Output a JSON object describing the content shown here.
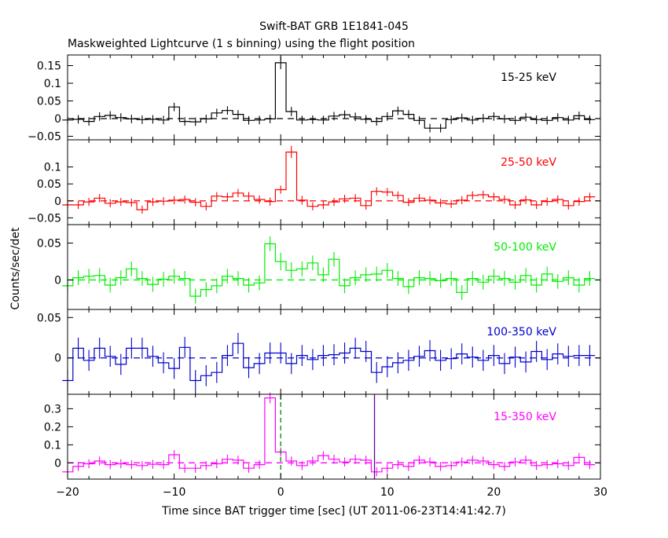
{
  "chart_data": {
    "type": "line",
    "title": "Swift-BAT GRB 1E1841-045",
    "subtitle": "Maskweighted Lightcurve (1 s binning) using the flight position",
    "xlabel": "Time since BAT trigger time [sec] (UT 2011-06-23T14:41:42.7)",
    "ylabel": "Counts/sec/det",
    "xlim": [
      -20,
      30
    ],
    "xticks": [
      -20,
      -10,
      0,
      10,
      20,
      30
    ],
    "x_tick_labels": [
      "−20",
      "−10",
      "0",
      "10",
      "20",
      "30"
    ],
    "x": [
      -20,
      -19,
      -18,
      -17,
      -16,
      -15,
      -14,
      -13,
      -12,
      -11,
      -10,
      -9,
      -8,
      -7,
      -6,
      -5,
      -4,
      -3,
      -2,
      -1,
      0,
      1,
      2,
      3,
      4,
      5,
      6,
      7,
      8,
      9,
      10,
      11,
      12,
      13,
      14,
      15,
      16,
      17,
      18,
      19,
      20,
      21,
      22,
      23,
      24,
      25,
      26,
      27,
      28,
      29
    ],
    "bin_width": 1,
    "grid": false,
    "zero_line": true,
    "series": [
      {
        "name": "15-25 keV",
        "color": "#000000",
        "ylim": [
          -0.06,
          0.18
        ],
        "yticks": [
          -0.05,
          0,
          0.05,
          0.1,
          0.15
        ],
        "y_tick_labels": [
          "−0.05",
          "0",
          "0.05",
          "0.1",
          "0.15"
        ],
        "values": [
          -0.004,
          -0.002,
          -0.008,
          0.006,
          0.009,
          0.003,
          -0.001,
          -0.003,
          -0.002,
          -0.004,
          0.033,
          -0.008,
          -0.009,
          -0.001,
          0.016,
          0.023,
          0.012,
          -0.005,
          -0.004,
          -0.001,
          0.158,
          0.02,
          -0.004,
          -0.003,
          -0.004,
          0.007,
          0.011,
          0.005,
          -0.002,
          -0.008,
          0.006,
          0.022,
          0.012,
          -0.005,
          -0.027,
          -0.027,
          -0.003,
          0.002,
          -0.004,
          0.001,
          0.006,
          -0.001,
          -0.005,
          0.004,
          -0.003,
          -0.005,
          0.003,
          -0.004,
          0.008,
          -0.003
        ],
        "errors": [
          0.012,
          0.012,
          0.012,
          0.012,
          0.012,
          0.012,
          0.012,
          0.012,
          0.012,
          0.012,
          0.012,
          0.012,
          0.012,
          0.012,
          0.012,
          0.012,
          0.012,
          0.012,
          0.012,
          0.012,
          0.018,
          0.013,
          0.012,
          0.012,
          0.012,
          0.012,
          0.012,
          0.012,
          0.012,
          0.012,
          0.012,
          0.012,
          0.012,
          0.012,
          0.012,
          0.012,
          0.012,
          0.012,
          0.012,
          0.012,
          0.012,
          0.012,
          0.012,
          0.012,
          0.012,
          0.012,
          0.012,
          0.012,
          0.012,
          0.012
        ]
      },
      {
        "name": "25-50 keV",
        "color": "#ff0000",
        "ylim": [
          -0.07,
          0.18
        ],
        "yticks": [
          -0.05,
          0,
          0.05,
          0.1
        ],
        "y_tick_labels": [
          "−0.05",
          "0",
          "0.05",
          "0.1"
        ],
        "values": [
          -0.012,
          -0.012,
          -0.003,
          0.008,
          -0.007,
          -0.003,
          -0.005,
          -0.026,
          -0.003,
          -0.001,
          0.002,
          0.004,
          -0.004,
          -0.016,
          0.014,
          0.012,
          0.023,
          0.014,
          0.004,
          -0.002,
          0.033,
          0.144,
          0.002,
          -0.016,
          -0.012,
          -0.003,
          0.006,
          0.008,
          -0.014,
          0.028,
          0.026,
          0.016,
          -0.004,
          0.008,
          0.002,
          -0.006,
          -0.009,
          0.002,
          0.016,
          0.018,
          0.012,
          0.004,
          -0.012,
          0.003,
          -0.012,
          -0.002,
          0.004,
          -0.014,
          -0.002,
          0.012
        ],
        "errors": [
          0.012,
          0.012,
          0.012,
          0.012,
          0.012,
          0.012,
          0.012,
          0.012,
          0.012,
          0.012,
          0.012,
          0.012,
          0.012,
          0.012,
          0.012,
          0.012,
          0.012,
          0.012,
          0.012,
          0.012,
          0.012,
          0.018,
          0.013,
          0.012,
          0.012,
          0.012,
          0.012,
          0.012,
          0.012,
          0.012,
          0.012,
          0.012,
          0.012,
          0.012,
          0.012,
          0.012,
          0.012,
          0.012,
          0.012,
          0.012,
          0.012,
          0.012,
          0.012,
          0.012,
          0.012,
          0.012,
          0.012,
          0.012,
          0.012,
          0.012
        ]
      },
      {
        "name": "50-100 keV",
        "color": "#00ee00",
        "ylim": [
          -0.04,
          0.075
        ],
        "yticks": [
          0,
          0.05
        ],
        "y_tick_labels": [
          "0",
          "0.05"
        ],
        "values": [
          -0.008,
          0.003,
          0.005,
          0.006,
          -0.007,
          0.003,
          0.015,
          0.002,
          -0.006,
          0.001,
          0.005,
          0.002,
          -0.022,
          -0.013,
          -0.008,
          0.005,
          0.002,
          -0.007,
          -0.004,
          0.049,
          0.025,
          0.013,
          0.015,
          0.023,
          0.007,
          0.028,
          -0.008,
          0.003,
          0.007,
          0.008,
          0.013,
          0.002,
          -0.009,
          0.003,
          0.002,
          -0.001,
          0.002,
          -0.017,
          0.002,
          -0.003,
          0.005,
          0.002,
          -0.003,
          0.006,
          -0.007,
          0.008,
          -0.002,
          0.003,
          -0.007,
          0.002
        ],
        "errors": [
          0.01,
          0.01,
          0.01,
          0.01,
          0.01,
          0.01,
          0.01,
          0.01,
          0.01,
          0.01,
          0.01,
          0.01,
          0.01,
          0.01,
          0.01,
          0.01,
          0.01,
          0.01,
          0.01,
          0.01,
          0.012,
          0.011,
          0.01,
          0.01,
          0.01,
          0.01,
          0.01,
          0.01,
          0.01,
          0.01,
          0.01,
          0.01,
          0.01,
          0.01,
          0.01,
          0.01,
          0.01,
          0.01,
          0.01,
          0.01,
          0.01,
          0.01,
          0.01,
          0.01,
          0.01,
          0.01,
          0.01,
          0.01,
          0.01,
          0.01
        ]
      },
      {
        "name": "100-350 keV",
        "color": "#0000cc",
        "ylim": [
          -0.045,
          0.06
        ],
        "yticks": [
          0,
          0.05
        ],
        "y_tick_labels": [
          "0",
          "0.05"
        ],
        "values": [
          -0.028,
          0.012,
          -0.003,
          0.012,
          0.002,
          -0.008,
          0.012,
          0.012,
          0.002,
          -0.006,
          -0.013,
          0.013,
          -0.028,
          -0.022,
          -0.018,
          0.003,
          0.018,
          -0.012,
          -0.007,
          0.006,
          0.006,
          -0.007,
          0.003,
          -0.002,
          0.003,
          0.004,
          0.006,
          0.012,
          0.008,
          -0.018,
          -0.011,
          -0.006,
          -0.003,
          0.002,
          0.009,
          -0.003,
          -0.001,
          0.005,
          0.001,
          -0.003,
          0.003,
          -0.007,
          0.001,
          -0.005,
          0.008,
          -0.002,
          0.005,
          0.002,
          0.003,
          0.003
        ],
        "errors": [
          0.013,
          0.013,
          0.013,
          0.013,
          0.013,
          0.013,
          0.013,
          0.013,
          0.013,
          0.013,
          0.013,
          0.013,
          0.013,
          0.013,
          0.013,
          0.013,
          0.013,
          0.013,
          0.013,
          0.013,
          0.013,
          0.013,
          0.013,
          0.013,
          0.013,
          0.013,
          0.013,
          0.013,
          0.013,
          0.013,
          0.013,
          0.013,
          0.013,
          0.013,
          0.013,
          0.013,
          0.013,
          0.013,
          0.013,
          0.013,
          0.013,
          0.013,
          0.013,
          0.013,
          0.013,
          0.013,
          0.013,
          0.013,
          0.013,
          0.013
        ]
      },
      {
        "name": "15-350 keV",
        "color": "#ff00ff",
        "ylim": [
          -0.09,
          0.38
        ],
        "yticks": [
          0,
          0.1,
          0.2,
          0.3
        ],
        "y_tick_labels": [
          "0",
          "0.1",
          "0.2",
          "0.3"
        ],
        "values": [
          -0.05,
          -0.02,
          -0.005,
          0.01,
          -0.01,
          -0.005,
          -0.01,
          -0.015,
          -0.008,
          -0.01,
          0.045,
          -0.03,
          -0.03,
          -0.015,
          -0.005,
          0.02,
          0.015,
          -0.03,
          -0.01,
          0.36,
          0.06,
          0.01,
          -0.015,
          0.01,
          0.04,
          0.02,
          0.005,
          0.02,
          0.015,
          -0.05,
          -0.03,
          -0.01,
          -0.02,
          0.015,
          0.005,
          -0.02,
          -0.015,
          0.005,
          0.015,
          0.01,
          -0.01,
          -0.02,
          0.005,
          0.015,
          -0.015,
          -0.01,
          -0.005,
          -0.015,
          0.03,
          -0.01
        ],
        "errors": [
          0.025,
          0.025,
          0.025,
          0.025,
          0.025,
          0.025,
          0.025,
          0.025,
          0.025,
          0.025,
          0.025,
          0.025,
          0.025,
          0.025,
          0.025,
          0.025,
          0.025,
          0.025,
          0.025,
          0.03,
          0.025,
          0.025,
          0.025,
          0.025,
          0.025,
          0.025,
          0.025,
          0.025,
          0.025,
          0.025,
          0.025,
          0.025,
          0.025,
          0.025,
          0.025,
          0.025,
          0.025,
          0.025,
          0.025,
          0.025,
          0.025,
          0.025,
          0.025,
          0.025,
          0.025,
          0.025,
          0.025,
          0.025,
          0.025,
          0.025
        ],
        "markers": [
          {
            "x": 0,
            "color": "#008800",
            "style": "dashed"
          },
          {
            "x": 8.8,
            "color": "#6600aa",
            "style": "solid"
          }
        ]
      }
    ]
  }
}
